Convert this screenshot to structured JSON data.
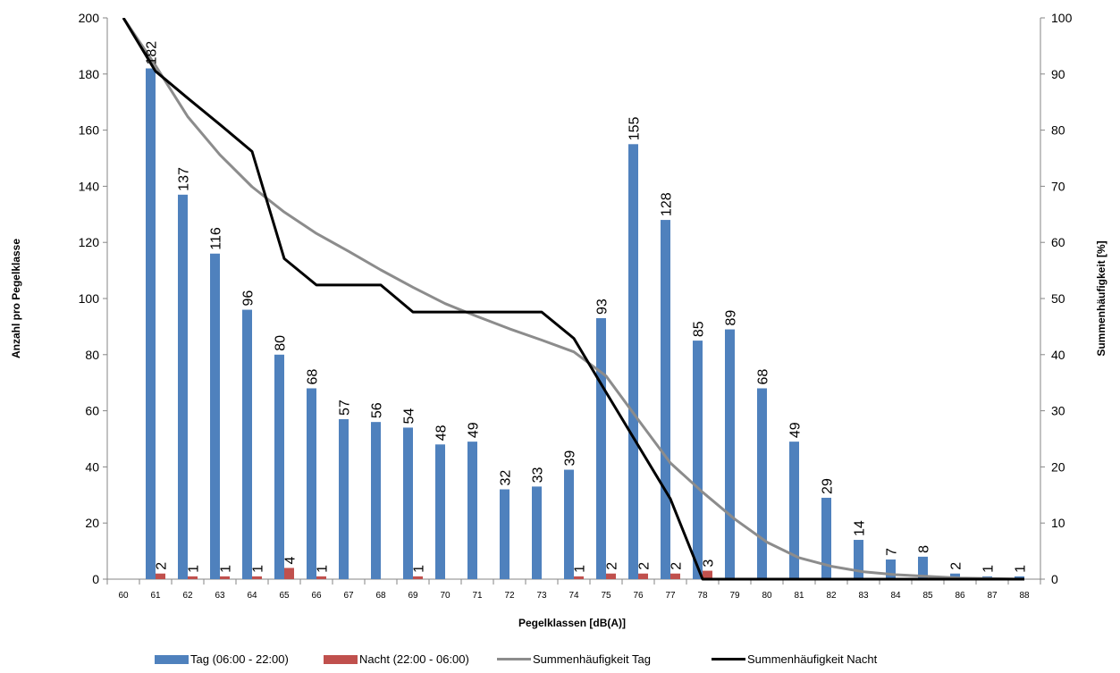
{
  "chart_data": {
    "type": "bar",
    "title": "",
    "xlabel": "Pegelklassen [dB(A)]",
    "ylabel": "Anzahl pro Pegelklasse",
    "y2label": "Summenhäufigkeit [%]",
    "ylim": [
      0,
      200
    ],
    "y2lim": [
      0,
      100
    ],
    "yticks": [
      "0",
      "20",
      "40",
      "60",
      "80",
      "100",
      "120",
      "140",
      "160",
      "180",
      "200"
    ],
    "y2ticks": [
      "0",
      "10",
      "20",
      "30",
      "40",
      "50",
      "60",
      "70",
      "80",
      "90",
      "100"
    ],
    "categories": [
      "60",
      "61",
      "62",
      "63",
      "64",
      "65",
      "66",
      "67",
      "68",
      "69",
      "70",
      "71",
      "72",
      "73",
      "74",
      "75",
      "76",
      "77",
      "78",
      "79",
      "80",
      "81",
      "82",
      "83",
      "84",
      "85",
      "86",
      "87",
      "88"
    ],
    "series": [
      {
        "name": "Tag (06:00 - 22:00)",
        "type": "bar",
        "color": "#4F81BD",
        "values": [
          0,
          182,
          137,
          116,
          96,
          80,
          68,
          57,
          56,
          54,
          48,
          49,
          32,
          33,
          39,
          93,
          155,
          128,
          85,
          89,
          68,
          49,
          29,
          14,
          7,
          8,
          2,
          1,
          1
        ],
        "labels": [
          "",
          "182",
          "137",
          "116",
          "96",
          "80",
          "68",
          "57",
          "56",
          "54",
          "48",
          "49",
          "32",
          "33",
          "39",
          "93",
          "155",
          "128",
          "85",
          "89",
          "68",
          "49",
          "29",
          "14",
          "7",
          "8",
          "2",
          "1",
          "1"
        ]
      },
      {
        "name": "Nacht (22:00 - 06:00)",
        "type": "bar",
        "color": "#C0504D",
        "values": [
          0,
          2,
          1,
          1,
          1,
          4,
          1,
          0,
          0,
          1,
          0,
          0,
          0,
          0,
          1,
          2,
          2,
          2,
          3,
          0,
          0,
          0,
          0,
          0,
          0,
          0,
          0,
          0,
          0
        ],
        "labels": [
          "",
          "2",
          "1",
          "1",
          "1",
          "4",
          "1",
          "",
          "",
          "1",
          "",
          "",
          "",
          "",
          "1",
          "2",
          "2",
          "2",
          "3",
          "",
          "",
          "",
          "",
          "",
          "",
          "",
          "",
          "",
          ""
        ]
      },
      {
        "name": "Summenhäufigkeit Tag",
        "type": "line",
        "axis": "right",
        "color": "#8C8C8C",
        "values": [
          100,
          91.5,
          82.4,
          75.6,
          69.9,
          65.4,
          61.6,
          58.4,
          55.1,
          52.0,
          49.1,
          46.8,
          44.6,
          42.6,
          40.5,
          36.2,
          28.4,
          20.7,
          15.5,
          10.7,
          6.6,
          3.8,
          2.3,
          1.3,
          0.8,
          0.5,
          0.2,
          0.1,
          0
        ]
      },
      {
        "name": "Summenhäufigkeit Nacht",
        "type": "line",
        "axis": "right",
        "color": "#000000",
        "values": [
          100,
          90.5,
          85.7,
          81.0,
          76.2,
          57.1,
          52.4,
          52.4,
          52.4,
          47.6,
          47.6,
          47.6,
          47.6,
          47.6,
          42.9,
          33.3,
          23.8,
          14.3,
          0,
          0,
          0,
          0,
          0,
          0,
          0,
          0,
          0,
          0,
          0
        ]
      }
    ],
    "grid": false,
    "legend": "bottom"
  }
}
